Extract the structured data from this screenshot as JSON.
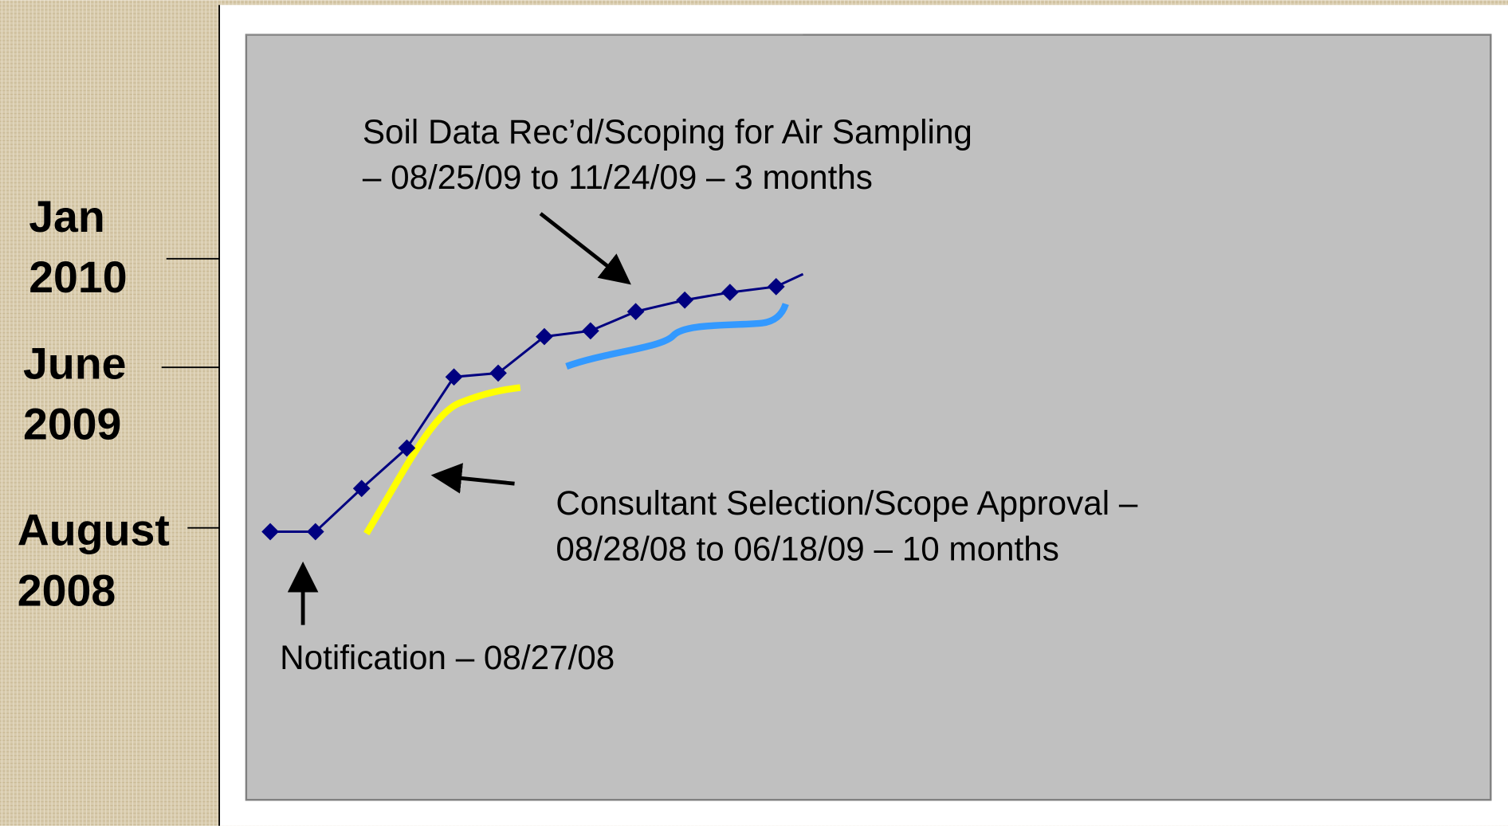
{
  "time_labels": [
    {
      "lines": [
        "Jan",
        "2010"
      ]
    },
    {
      "lines": [
        "June",
        "2009"
      ]
    },
    {
      "lines": [
        "August",
        "2008"
      ]
    }
  ],
  "annotations": [
    {
      "lines": [
        "Soil Data Rec’d/Scoping for Air Sampling",
        "– 08/25/09 to 11/24/09 – 3 months"
      ]
    },
    {
      "lines": [
        "Consultant Selection/Scope Approval –",
        "08/28/08 to 06/18/09 – 10 months"
      ]
    },
    {
      "lines": [
        "Notification – 08/27/08"
      ]
    }
  ]
}
